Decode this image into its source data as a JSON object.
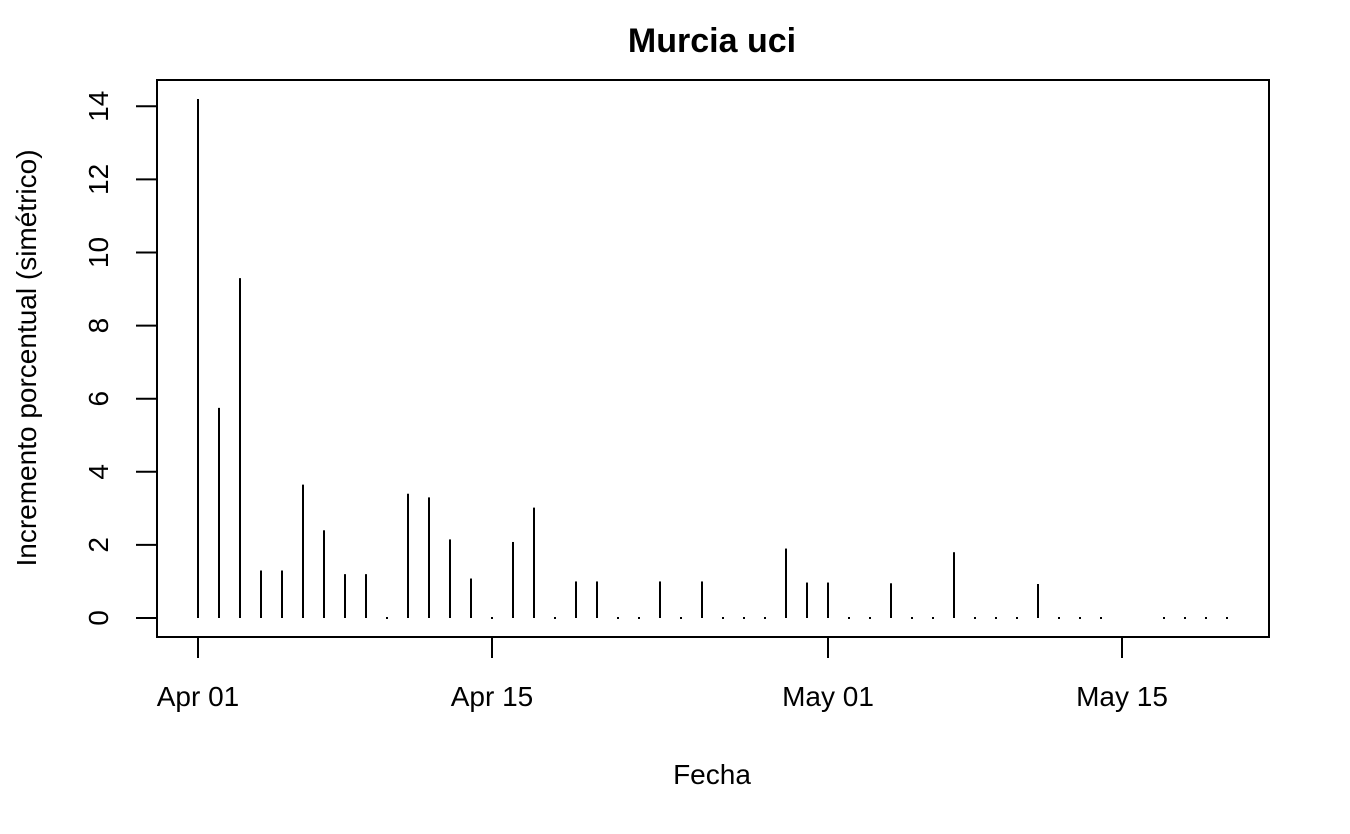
{
  "chart_data": {
    "type": "bar",
    "style": "spikes",
    "title": "Murcia uci",
    "xlabel": "Fecha",
    "ylabel": "Incremento porcentual (simétrico)",
    "x_start_date": "Apr 01",
    "x_tick_labels": [
      "Apr 01",
      "Apr 15",
      "May 01",
      "May 15"
    ],
    "x_tick_days": [
      0,
      14,
      30,
      44
    ],
    "y_ticks": [
      0,
      2,
      4,
      6,
      8,
      10,
      12,
      14
    ],
    "ylim": [
      0,
      14.2
    ],
    "grid": false,
    "series": [
      {
        "name": "Murcia uci",
        "day_offsets": [
          0,
          1,
          2,
          3,
          4,
          5,
          6,
          7,
          8,
          9,
          10,
          11,
          12,
          13,
          14,
          15,
          16,
          17,
          18,
          19,
          20,
          21,
          22,
          23,
          24,
          25,
          26,
          27,
          28,
          29,
          30,
          31,
          32,
          33,
          34,
          35,
          36,
          37,
          38,
          39,
          40,
          41,
          42,
          43,
          44,
          45,
          46,
          47,
          48,
          49
        ],
        "values": [
          14.2,
          5.75,
          9.3,
          1.3,
          1.3,
          3.65,
          2.4,
          1.2,
          1.2,
          0,
          3.4,
          3.3,
          2.15,
          1.08,
          0,
          2.08,
          3.02,
          0,
          1.0,
          1.0,
          0,
          0,
          1.0,
          0,
          1.0,
          0,
          0,
          0,
          1.9,
          0.97,
          0.97,
          0,
          0,
          0.95,
          0,
          0,
          1.8,
          0,
          0,
          0,
          0.93,
          0,
          0,
          0,
          null,
          null,
          0,
          0,
          0,
          0
        ],
        "color": "#000000"
      }
    ]
  }
}
